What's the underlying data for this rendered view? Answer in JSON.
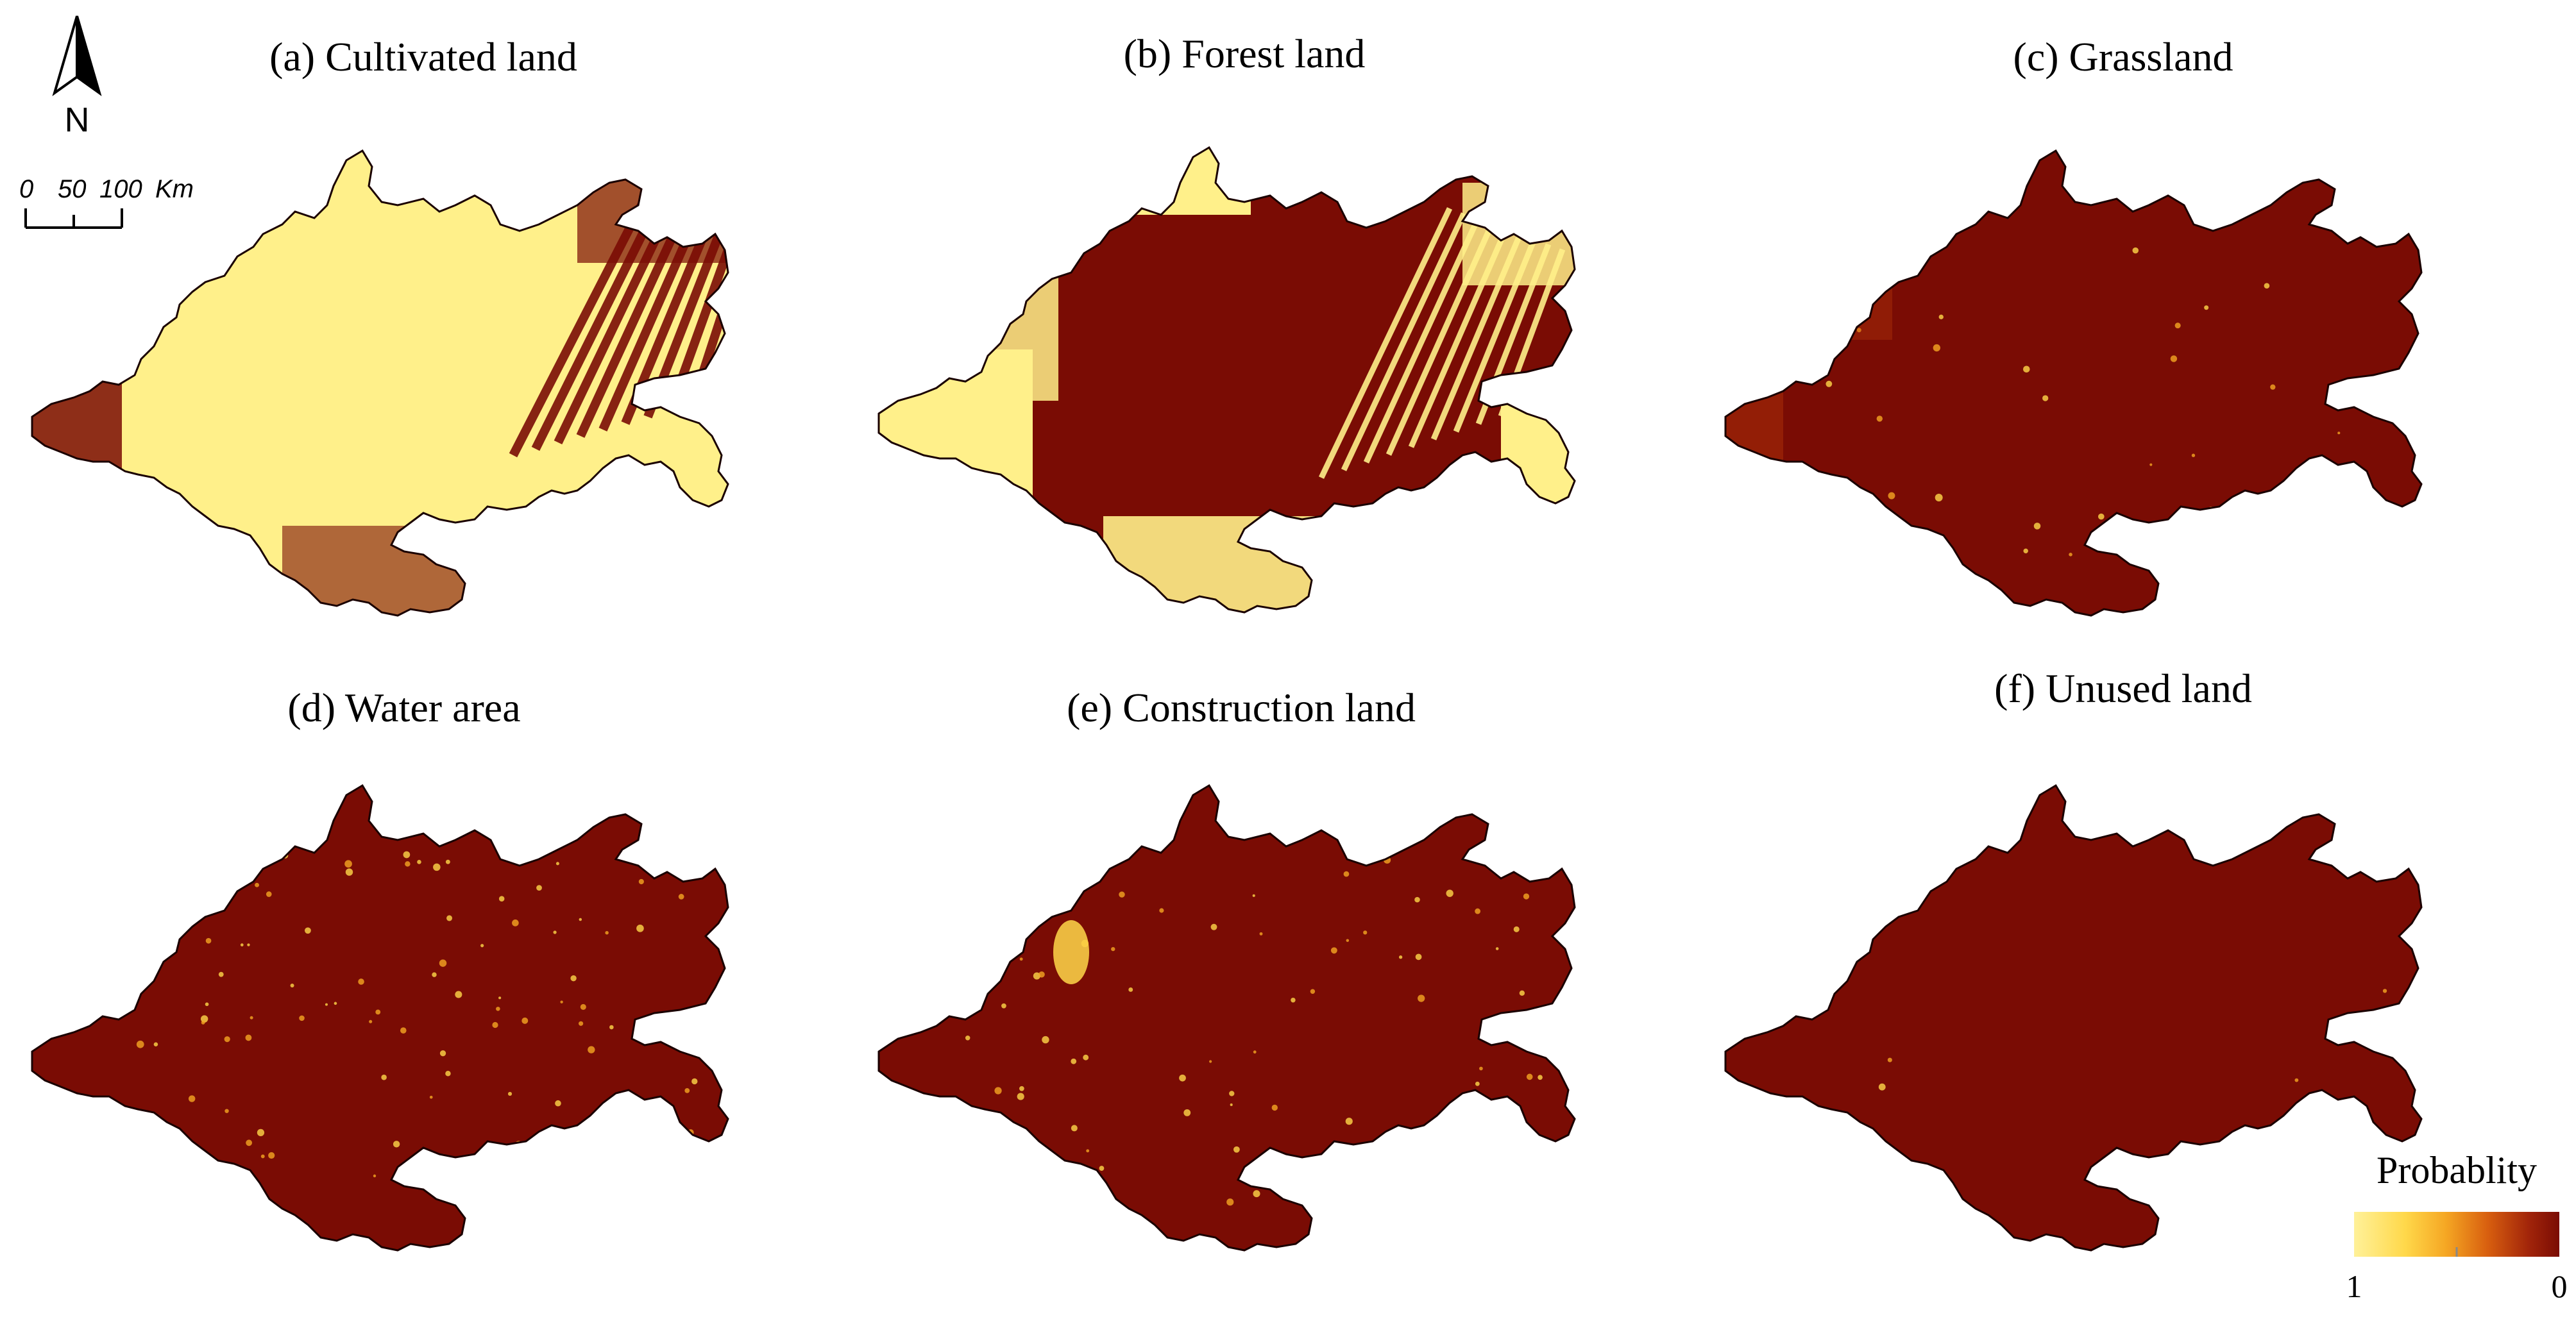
{
  "panels": [
    {
      "id": "a",
      "title": "(a) Cultivated land",
      "dominant_class": "high"
    },
    {
      "id": "b",
      "title": "(b) Forest land",
      "dominant_class": "mixed"
    },
    {
      "id": "c",
      "title": "(c) Grassland",
      "dominant_class": "low"
    },
    {
      "id": "d",
      "title": "(d) Water area",
      "dominant_class": "low"
    },
    {
      "id": "e",
      "title": "(e) Construction land",
      "dominant_class": "low"
    },
    {
      "id": "f",
      "title": "(f) Unused land",
      "dominant_class": "low"
    }
  ],
  "north_arrow": {
    "label": "N"
  },
  "scale_bar": {
    "labels": [
      "0",
      "50",
      "100"
    ],
    "unit": "Km"
  },
  "legend": {
    "title": "Probablity",
    "min_label": "1",
    "max_label": "0",
    "colors": [
      "#fff199",
      "#ffd84a",
      "#f5a623",
      "#d85f0f",
      "#a2250a",
      "#7a0c04"
    ]
  },
  "colors": {
    "low_probability": "#7a0c04",
    "high_probability": "#fff08a",
    "boundary": "#1a0000"
  }
}
